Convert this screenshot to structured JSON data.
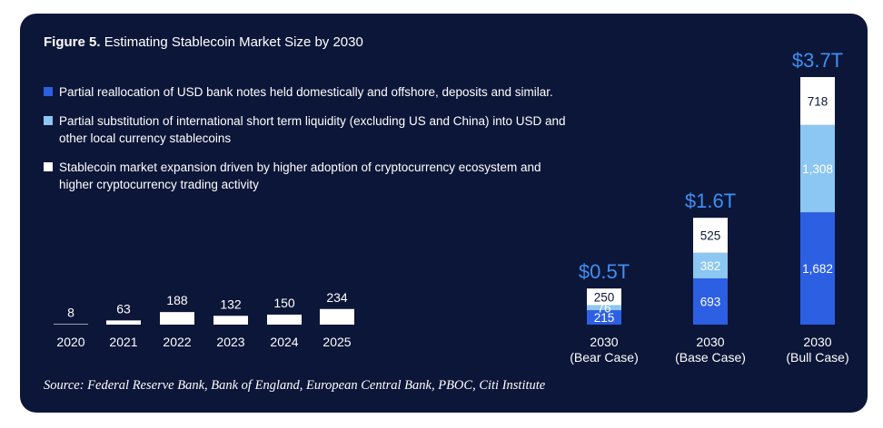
{
  "chart_data": {
    "type": "stacked-bar",
    "figure_label": "Figure 5.",
    "title": "Estimating Stablecoin Market Size by 2030",
    "source": "Source: Federal Reserve Bank, Bank of England, European Central Bank, PBOC, Citi Institute",
    "categories": [
      "2020",
      "2021",
      "2022",
      "2023",
      "2024",
      "2025",
      [
        "2030",
        "(Bear Case)"
      ],
      [
        "2030",
        "(Base Case)"
      ],
      [
        "2030",
        "(Bull Case)"
      ]
    ],
    "series": [
      {
        "name": "Partial reallocation of USD bank notes held domestically and offshore, deposits and similar.",
        "color": "#2d5fe3",
        "values": [
          null,
          null,
          null,
          null,
          null,
          null,
          215,
          693,
          1682
        ],
        "value_labels": [
          null,
          null,
          null,
          null,
          null,
          null,
          "215",
          "693",
          "1,682"
        ]
      },
      {
        "name": "Partial substitution of international short term liquidity (excluding US and China) into USD and other local currency stablecoins",
        "color": "#8cc6f2",
        "values": [
          null,
          null,
          null,
          null,
          null,
          null,
          76,
          382,
          1308
        ],
        "value_labels": [
          null,
          null,
          null,
          null,
          null,
          null,
          "76",
          "382",
          "1,308"
        ]
      },
      {
        "name": "Stablecoin market expansion driven by higher adoption of cryptocurrency ecosystem and higher cryptocurrency trading activity",
        "color": "#ffffff",
        "values": [
          8,
          63,
          188,
          132,
          150,
          234,
          250,
          525,
          718
        ]
      }
    ],
    "totals": {
      "values": [
        null,
        null,
        null,
        null,
        null,
        null,
        541,
        1600,
        3708
      ],
      "value_labels": [
        null,
        null,
        null,
        null,
        null,
        null,
        "$0.5T",
        "$1.6T",
        "$3.7T"
      ],
      "color": "#3f8ff2"
    }
  }
}
